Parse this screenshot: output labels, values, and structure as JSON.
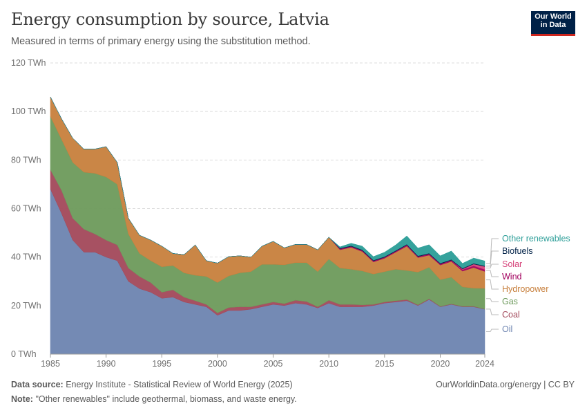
{
  "header": {
    "title": "Energy consumption by source, Latvia",
    "subtitle": "Measured in terms of primary energy using the substitution method.",
    "logo_line1": "Our World",
    "logo_line2": "in Data"
  },
  "footer": {
    "source_label": "Data source:",
    "source_text": "Energy Institute - Statistical Review of World Energy (2025)",
    "note_label": "Note:",
    "note_text": "\"Other renewables\" include geothermal, biomass, and waste energy.",
    "link_text": "OurWorldinData.org/energy",
    "license": "| CC BY"
  },
  "chart_data": {
    "type": "area",
    "stacked": true,
    "title": "Energy consumption by source, Latvia",
    "subtitle": "Measured in terms of primary energy using the substitution method.",
    "ylim": [
      0,
      120
    ],
    "yticks": [
      0,
      20,
      40,
      60,
      80,
      100,
      120
    ],
    "ytick_labels": [
      "0 TWh",
      "20 TWh",
      "40 TWh",
      "60 TWh",
      "80 TWh",
      "100 TWh",
      "120 TWh"
    ],
    "xticks": [
      1985,
      1990,
      1995,
      2000,
      2005,
      2010,
      2015,
      2020,
      2024
    ],
    "xlim": [
      1985,
      2024
    ],
    "grid": "horizontal-dashed",
    "legend": "right, inline labels",
    "x": [
      1985,
      1986,
      1987,
      1988,
      1989,
      1990,
      1991,
      1992,
      1993,
      1994,
      1995,
      1996,
      1997,
      1998,
      1999,
      2000,
      2001,
      2002,
      2003,
      2004,
      2005,
      2006,
      2007,
      2008,
      2009,
      2010,
      2011,
      2012,
      2013,
      2014,
      2015,
      2016,
      2017,
      2018,
      2019,
      2020,
      2021,
      2022,
      2023,
      2024
    ],
    "series": [
      {
        "name": "Oil",
        "color": "#6d84b0",
        "values": [
          68,
          58,
          47,
          42,
          42,
          40,
          38.5,
          30,
          27,
          25.5,
          23,
          23.5,
          21.5,
          20.5,
          19.5,
          16,
          18,
          18,
          18.5,
          19.5,
          20.5,
          20,
          21,
          20.5,
          19,
          21,
          19.5,
          19.5,
          19.5,
          20,
          21,
          21.5,
          22,
          20,
          22.5,
          19.5,
          20.5,
          19.5,
          19.5,
          18.5
        ]
      },
      {
        "name": "Coal",
        "color": "#a2485a",
        "values": [
          8,
          9.5,
          9,
          9.5,
          7.5,
          7,
          6.5,
          5.5,
          5,
          4,
          2.5,
          3,
          2,
          1.5,
          1,
          1,
          1.2,
          1.5,
          1,
          1,
          1,
          0.8,
          1.2,
          1.2,
          0.5,
          1.2,
          1,
          1,
          0.8,
          0.5,
          0.5,
          0.5,
          0.5,
          0.3,
          0.3,
          0.2,
          0.2,
          0.2,
          0.2,
          0.1
        ]
      },
      {
        "name": "Gas",
        "color": "#6d9a5b",
        "values": [
          22,
          21,
          23,
          23.5,
          25,
          26,
          25,
          14,
          9.5,
          9,
          10.5,
          10,
          10,
          10.5,
          11.5,
          12.5,
          13,
          14,
          14.5,
          16.5,
          15.5,
          16,
          15.5,
          16,
          14.5,
          17,
          15,
          14.5,
          14,
          12.5,
          12.5,
          13,
          12,
          13.5,
          13,
          11,
          11,
          8,
          7.5,
          8.5
        ]
      },
      {
        "name": "Hydropower",
        "color": "#c77f3c",
        "values": [
          8,
          8.5,
          10,
          9.5,
          10,
          12.5,
          9,
          6.5,
          7.5,
          8.5,
          8.5,
          5,
          7.5,
          12.5,
          6.5,
          8,
          8,
          7,
          6,
          7.5,
          9.5,
          7,
          7.5,
          7.5,
          9,
          9,
          7.5,
          9,
          8,
          5,
          5.5,
          7,
          10,
          6,
          5,
          6,
          6.5,
          6.5,
          8.5,
          7
        ]
      },
      {
        "name": "Wind",
        "color": "#a2005e",
        "values": [
          0,
          0,
          0,
          0,
          0,
          0,
          0,
          0,
          0,
          0,
          0,
          0,
          0,
          0,
          0,
          0,
          0,
          0,
          0,
          0,
          0,
          0,
          0,
          0,
          0,
          0,
          0.4,
          0.4,
          0.4,
          0.4,
          0.4,
          0.4,
          0.5,
          0.4,
          0.5,
          0.5,
          0.5,
          0.6,
          0.7,
          0.8
        ]
      },
      {
        "name": "Solar",
        "color": "#d6457b",
        "values": [
          0,
          0,
          0,
          0,
          0,
          0,
          0,
          0,
          0,
          0,
          0,
          0,
          0,
          0,
          0,
          0,
          0,
          0,
          0,
          0,
          0,
          0,
          0,
          0,
          0,
          0,
          0,
          0,
          0,
          0,
          0,
          0,
          0,
          0,
          0,
          0,
          0,
          0.3,
          0.7,
          1.2
        ]
      },
      {
        "name": "Biofuels",
        "color": "#002147",
        "values": [
          0,
          0,
          0,
          0,
          0,
          0,
          0,
          0,
          0,
          0,
          0,
          0,
          0,
          0,
          0,
          0,
          0,
          0,
          0,
          0,
          0,
          0,
          0,
          0,
          0,
          0,
          0.3,
          0.3,
          0.3,
          0.3,
          0.3,
          0.3,
          0.3,
          0.3,
          0.3,
          0.3,
          0.3,
          0.3,
          0.3,
          0.3
        ]
      },
      {
        "name": "Other renewables",
        "color": "#2a9d97",
        "values": [
          0,
          0,
          0,
          0,
          0,
          0,
          0,
          0,
          0,
          0,
          0,
          0,
          0,
          0,
          0,
          0,
          0,
          0,
          0,
          0,
          0,
          0,
          0,
          0,
          0,
          0,
          0.5,
          1,
          1.5,
          1.5,
          1.8,
          2.3,
          3.4,
          3.2,
          3.5,
          3,
          3.5,
          2,
          2.2,
          2
        ]
      }
    ]
  }
}
